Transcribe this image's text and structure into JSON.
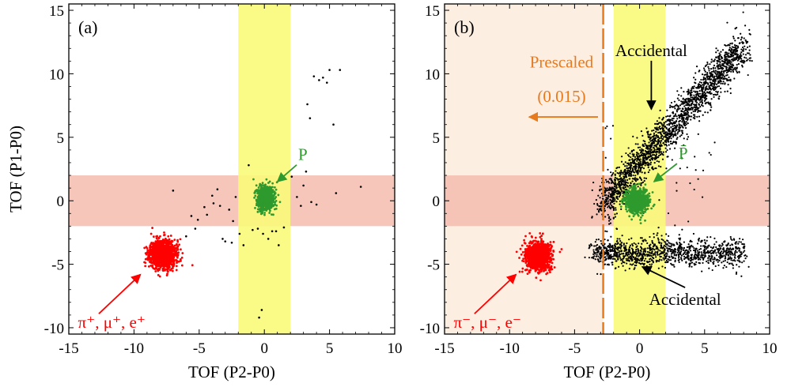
{
  "colors": {
    "pion_region": "#ff0000",
    "proton_region": "#2e9a2e",
    "accidental": "#000000",
    "tof_cut_band": "#f5bcae",
    "tof_p2_band": "#fafa7a",
    "prescale": "#e87a1e",
    "prescale_shade": "#fdeee2"
  },
  "chart_data": [
    {
      "type": "scatter",
      "panel_label": "(a)",
      "xlabel": "TOF (P2-P0)",
      "ylabel": "TOF (P1-P0)",
      "xlim": [
        -15,
        10
      ],
      "ylim": [
        -10.5,
        15.5
      ],
      "xticks": [
        -15,
        -10,
        -5,
        0,
        5,
        10
      ],
      "yticks": [
        -10,
        -5,
        0,
        5,
        10,
        15
      ],
      "horizontal_band": [
        -2,
        2
      ],
      "vertical_band": [
        -2,
        2
      ],
      "clusters": [
        {
          "name": "pi-mu-e",
          "color": "#ff0000",
          "center": [
            -7.8,
            -4.2
          ],
          "spread": [
            0.9,
            1.0
          ],
          "count": 1300
        },
        {
          "name": "P",
          "color": "#2e9a2e",
          "center": [
            0.1,
            0.2
          ],
          "spread": [
            0.55,
            0.8
          ],
          "count": 1100
        }
      ],
      "accidental_points": [
        [
          -8.5,
          -4.6
        ],
        [
          -7.0,
          0.8
        ],
        [
          -6.0,
          -2.8
        ],
        [
          -5.6,
          -1.2
        ],
        [
          -5.3,
          -2.2
        ],
        [
          -5.1,
          -1.5
        ],
        [
          -4.6,
          -0.5
        ],
        [
          -4.4,
          -1.1
        ],
        [
          -4.0,
          0.4
        ],
        [
          -3.9,
          -0.2
        ],
        [
          -3.6,
          0.9
        ],
        [
          -3.4,
          -0.4
        ],
        [
          -3.2,
          -3.0
        ],
        [
          -3.0,
          -3.2
        ],
        [
          -2.7,
          -0.7
        ],
        [
          -2.5,
          -3.3
        ],
        [
          -2.4,
          -1.6
        ],
        [
          -2.2,
          0.3
        ],
        [
          -1.9,
          -2.6
        ],
        [
          -1.6,
          -3.5
        ],
        [
          -1.2,
          2.8
        ],
        [
          -0.9,
          -2.3
        ],
        [
          -0.5,
          -2.2
        ],
        [
          -0.1,
          -2.6
        ],
        [
          0.3,
          -3.0
        ],
        [
          0.6,
          -2.4
        ],
        [
          0.9,
          -2.4
        ],
        [
          1.1,
          -3.5
        ],
        [
          1.5,
          -2.1
        ],
        [
          -0.2,
          -8.6
        ],
        [
          -0.4,
          -9.2
        ],
        [
          2.1,
          1.9
        ],
        [
          2.5,
          0.3
        ],
        [
          2.8,
          -0.4
        ],
        [
          3.0,
          1.2
        ],
        [
          3.2,
          2.3
        ],
        [
          3.3,
          7.6
        ],
        [
          3.5,
          6.5
        ],
        [
          3.6,
          -0.1
        ],
        [
          3.8,
          9.8
        ],
        [
          4.0,
          -0.3
        ],
        [
          4.2,
          9.5
        ],
        [
          4.5,
          9.7
        ],
        [
          4.8,
          9.3
        ],
        [
          5.0,
          10.3
        ],
        [
          5.3,
          6.0
        ],
        [
          5.5,
          0.6
        ],
        [
          5.8,
          10.3
        ],
        [
          7.4,
          1.1
        ]
      ],
      "annotations": [
        {
          "text": "P",
          "color": "#2e9a2e",
          "position": [
            2.6,
            3.2
          ],
          "arrow_to": [
            1.0,
            1.5
          ]
        },
        {
          "text": "π⁺, μ⁺, e⁺",
          "color": "#ff0000",
          "position": [
            -14.3,
            -10.0
          ],
          "arrow_from": [
            -12.7,
            -8.9
          ],
          "arrow_to": [
            -9.5,
            -5.8
          ]
        }
      ]
    },
    {
      "type": "scatter",
      "panel_label": "(b)",
      "xlabel": "TOF (P2-P0)",
      "ylabel": "",
      "xlim": [
        -15,
        10
      ],
      "ylim": [
        -10.5,
        15.5
      ],
      "xticks": [
        -15,
        -10,
        -5,
        0,
        5,
        10
      ],
      "yticks": [
        -10,
        -5,
        0,
        5,
        10,
        15
      ],
      "horizontal_band": [
        -2,
        2
      ],
      "vertical_band": [
        -2,
        2
      ],
      "prescale_cut_x": -2.8,
      "clusters": [
        {
          "name": "pi-mu-e",
          "color": "#ff0000",
          "center": [
            -7.8,
            -4.4
          ],
          "spread": [
            0.9,
            1.0
          ],
          "count": 1300
        },
        {
          "name": "P-bar",
          "color": "#2e9a2e",
          "center": [
            -0.2,
            0.0
          ],
          "spread": [
            0.75,
            0.8
          ],
          "count": 1000
        }
      ],
      "accidental_bands": [
        {
          "from": [
            -3.0,
            -0.5
          ],
          "to": [
            8.0,
            12.2
          ],
          "width": 0.9,
          "count": 2000
        },
        {
          "from": [
            -3.5,
            -4.1
          ],
          "to": [
            8.0,
            -4.1
          ],
          "width": 0.7,
          "count": 1100
        }
      ],
      "annotations": [
        {
          "text": "Prescaled",
          "color": "#e87a1e",
          "position": [
            -6.0,
            10.5
          ]
        },
        {
          "text": "(0.015)",
          "color": "#e87a1e",
          "position": [
            -6.0,
            7.8
          ],
          "arrow_from": [
            -3.2,
            6.6
          ],
          "arrow_to": [
            -8.5,
            6.6
          ]
        },
        {
          "text": "Accidental",
          "color": "#000000",
          "position": [
            0.9,
            11.4
          ],
          "arrow_to": [
            0.9,
            7.2
          ]
        },
        {
          "text": "P̄",
          "color": "#2e9a2e",
          "position": [
            3.0,
            3.3
          ],
          "arrow_to": [
            1.1,
            1.5
          ]
        },
        {
          "text": "Accidental",
          "color": "#000000",
          "position": [
            3.5,
            -8.2
          ],
          "arrow_to": [
            0.2,
            -5.2
          ]
        },
        {
          "text": "π⁻, μ⁻, e⁻",
          "color": "#ff0000",
          "position": [
            -14.3,
            -10.0
          ],
          "arrow_from": [
            -12.7,
            -8.9
          ],
          "arrow_to": [
            -9.5,
            -5.8
          ]
        }
      ]
    }
  ]
}
